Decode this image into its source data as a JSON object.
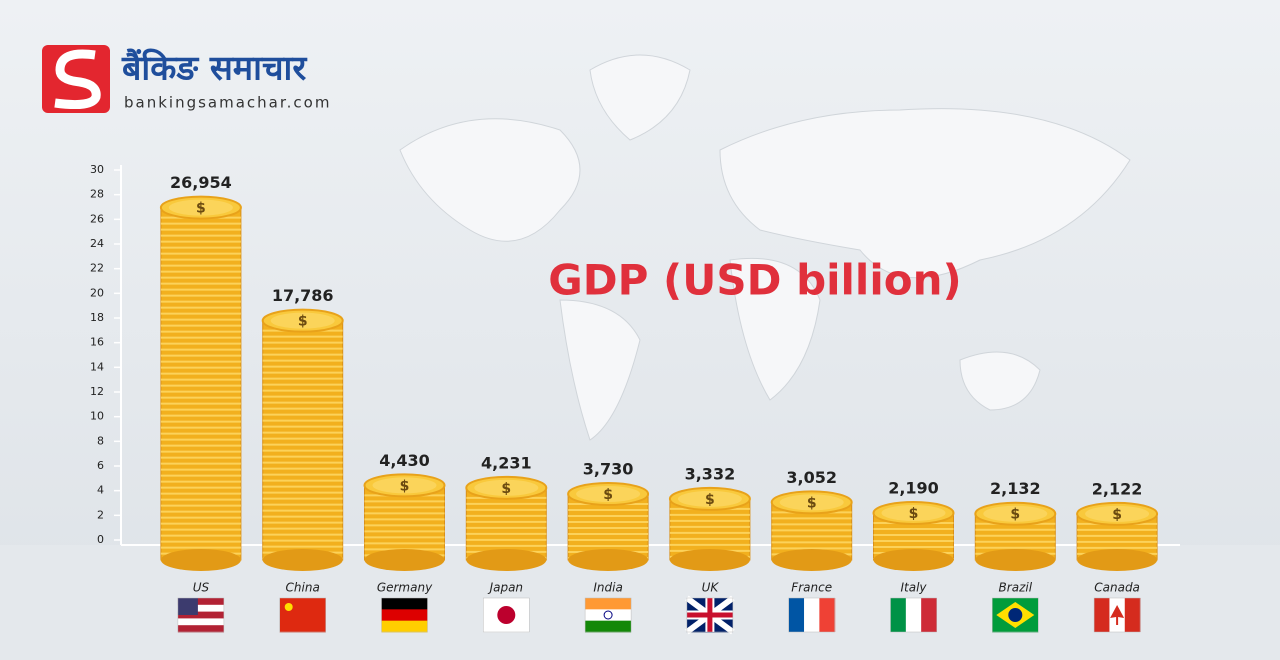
{
  "logo": {
    "name": "बैंकिङ समाचार",
    "url": "bankingsamachar.com"
  },
  "chart_data": {
    "type": "bar",
    "title": "GDP (USD billion)",
    "categories": [
      "US",
      "China",
      "Germany",
      "Japan",
      "India",
      "UK",
      "France",
      "Italy",
      "Brazil",
      "Canada"
    ],
    "values": [
      26.954,
      17.786,
      4.43,
      4.231,
      3.73,
      3.332,
      3.052,
      2.19,
      2.132,
      2.122
    ],
    "value_labels": [
      "26,954",
      "17,786",
      "4,430",
      "4,231",
      "3,730",
      "3,332",
      "3,052",
      "2,190",
      "2,132",
      "2,122"
    ],
    "coin_symbol": "$",
    "color": "#f2b01e",
    "ylim": [
      0,
      30
    ],
    "yticks": [
      0,
      2,
      4,
      6,
      8,
      10,
      12,
      14,
      16,
      18,
      20,
      22,
      24,
      26,
      28,
      30
    ]
  }
}
